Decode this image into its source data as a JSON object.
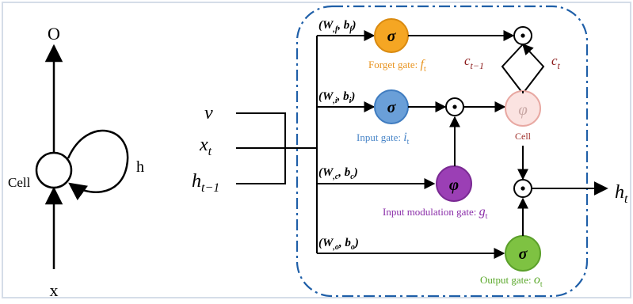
{
  "left_diagram": {
    "output": "O",
    "input": "x",
    "cell": "Cell",
    "recurrence": "h"
  },
  "inputs": {
    "v": "v",
    "x_t": "x",
    "x_t_sub": "t",
    "h_prev": "h",
    "h_prev_sub": "t−1"
  },
  "weights": {
    "forget": "(W",
    "forget_sub": ",f",
    "forget_b": ", b",
    "forget_b_sub": "f",
    "input": "(W",
    "input_sub": ",i",
    "input_b": ", b",
    "input_b_sub": "i",
    "cand": "(W",
    "cand_sub": ",c",
    "cand_b": ", b",
    "cand_b_sub": "c",
    "output": "(W",
    "output_sub": ",o",
    "output_b": ", b",
    "output_b_sub": "o",
    "close": ")"
  },
  "gates": {
    "forget_symbol": "σ",
    "forget_label": "Forget gate: ",
    "forget_var": "f",
    "forget_var_sub": "t",
    "input_symbol": "σ",
    "input_label": "Input gate: ",
    "input_var": "i",
    "input_var_sub": "t",
    "mod_symbol": "φ",
    "mod_label": "Input modulation gate: ",
    "mod_var": "g",
    "mod_var_sub": "t",
    "output_symbol": "σ",
    "output_label": "Output gate: ",
    "output_var": "o",
    "output_var_sub": "t",
    "cell_symbol": "φ",
    "cell_label": "Cell"
  },
  "cell_state": {
    "prev": "c",
    "prev_sub": "t−1",
    "curr": "c",
    "curr_sub": "t"
  },
  "output": {
    "h": "h",
    "h_sub": "t"
  },
  "operators": {
    "mult": "⊙"
  },
  "colors": {
    "forget": "#f5a623",
    "forget_text": "#e8931e",
    "input": "#6a9fd8",
    "input_text": "#4a86c8",
    "mod": "#9b3fb5",
    "mod_text": "#8a2da8",
    "output": "#7ec242",
    "output_text": "#5aa82a",
    "cell_fill": "#fbe3e1",
    "cell_stroke": "#e8a8a2",
    "cell_text": "#a0302b",
    "cstate_text": "#8b1a1a",
    "box": "#1f5fa8"
  }
}
